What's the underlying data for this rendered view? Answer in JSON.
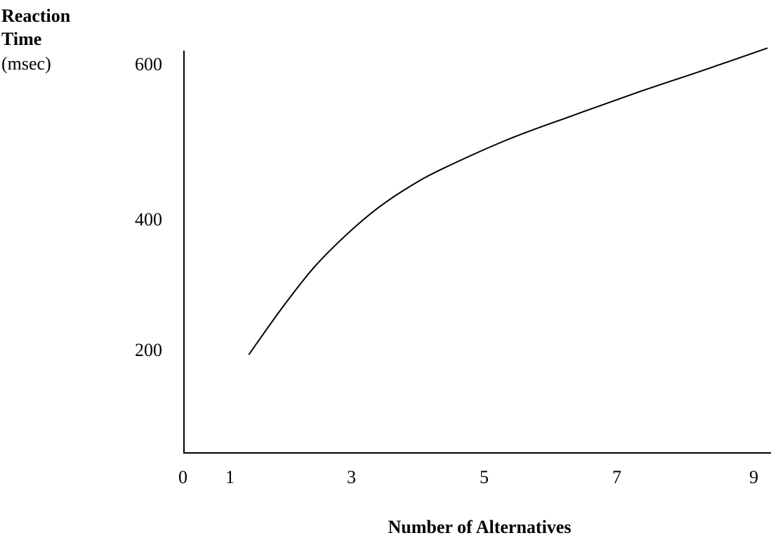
{
  "chart_data": {
    "type": "line",
    "title": "",
    "ylabel": {
      "line1": "Reaction",
      "line2": "Time",
      "unit": "(msec)"
    },
    "xlabel": "Number of Alternatives",
    "x_ticks": [
      "0",
      "1",
      "3",
      "5",
      "7",
      "9"
    ],
    "y_ticks": [
      "200",
      "400",
      "600"
    ],
    "xlim": [
      0,
      9
    ],
    "ylim": [
      100,
      600
    ],
    "grid": false,
    "legend": "none",
    "series": [
      {
        "x": [
          1,
          1.5,
          2,
          2.5,
          3,
          3.5,
          4,
          5,
          6,
          7,
          8,
          9
        ],
        "y": [
          195,
          258,
          315,
          360,
          398,
          428,
          452,
          492,
          525,
          557,
          587,
          618
        ]
      }
    ],
    "line_color": "#000000"
  }
}
